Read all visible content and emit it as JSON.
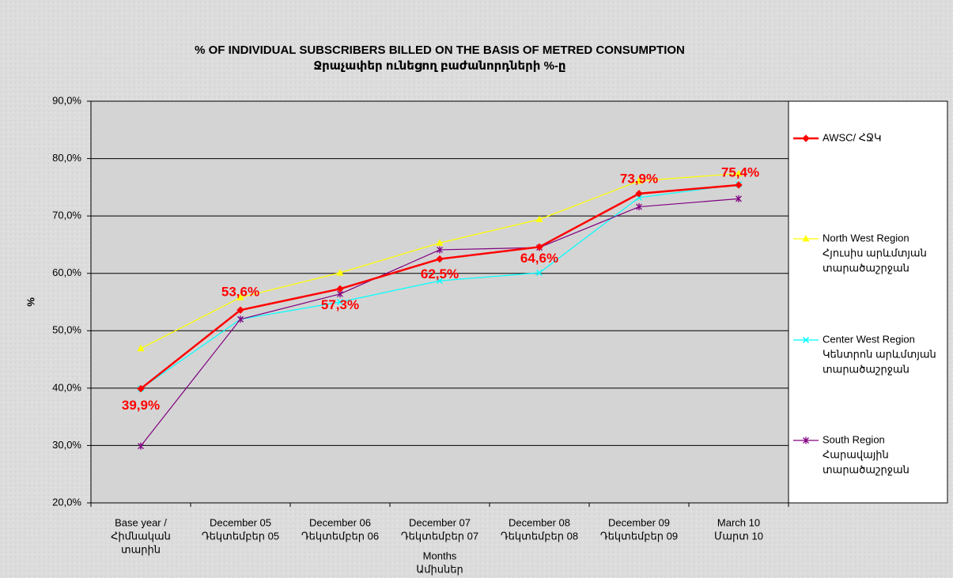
{
  "chart_data": {
    "type": "line",
    "title": "% OF INDIVIDUAL SUBSCRIBERS BILLED ON THE BASIS OF METRED CONSUMPTION",
    "subtitle": "Ջրաչափեր ունեցող բաժանորդների %-ը",
    "xlabel": [
      "Months",
      "Ամիսներ"
    ],
    "ylabel": "%",
    "categories": [
      [
        "Base year /",
        "Հիմնական",
        "տարին"
      ],
      [
        "December 05",
        "Դեկտեմբեր 05"
      ],
      [
        "December 06",
        "Դեկտեմբեր 06"
      ],
      [
        "December 07",
        "Դեկտեմբեր 07"
      ],
      [
        "December 08",
        "Դեկտեմբեր 08"
      ],
      [
        "December 09",
        "Դեկտեմբեր 09"
      ],
      [
        "March 10",
        "Մարտ 10"
      ]
    ],
    "series": [
      {
        "name": [
          "AWSC/ ՀՋԿ"
        ],
        "color": "#ff0000",
        "marker": "diamond",
        "values": [
          39.9,
          53.6,
          57.3,
          62.5,
          64.6,
          73.9,
          75.4
        ],
        "value_labels": [
          "39,9%",
          "53,6%",
          "57,3%",
          "62,5%",
          "64,6%",
          "73,9%",
          "75,4%"
        ]
      },
      {
        "name": [
          "North West Region",
          "Հյուսիս արևմտյան",
          "տարածաշրջան"
        ],
        "color": "#ffff00",
        "marker": "triangle",
        "values": [
          46.9,
          55.8,
          60.1,
          65.3,
          69.4,
          76.1,
          77.4
        ]
      },
      {
        "name": [
          "Center West Region",
          "Կենտրոն արևմտյան",
          "տարածաշրջան"
        ],
        "color": "#00ffff",
        "marker": "x",
        "values": [
          39.9,
          52.0,
          55.0,
          58.7,
          60.1,
          73.2,
          75.5
        ]
      },
      {
        "name": [
          "South Region",
          "Հարավային",
          "տարածաշրջան"
        ],
        "color": "#800080",
        "marker": "star",
        "values": [
          29.9,
          52.0,
          56.4,
          64.1,
          64.5,
          71.6,
          73.0
        ]
      }
    ],
    "ylim": [
      20,
      90
    ],
    "yticks": [
      {
        "value": 20,
        "label": "20,0%"
      },
      {
        "value": 30,
        "label": "30,0%"
      },
      {
        "value": 40,
        "label": "40,0%"
      },
      {
        "value": 50,
        "label": "50,0%"
      },
      {
        "value": 60,
        "label": "60,0%"
      },
      {
        "value": 70,
        "label": "70,0%"
      },
      {
        "value": 80,
        "label": "80,0%"
      },
      {
        "value": 90,
        "label": "90,0%"
      }
    ],
    "grid": true
  }
}
